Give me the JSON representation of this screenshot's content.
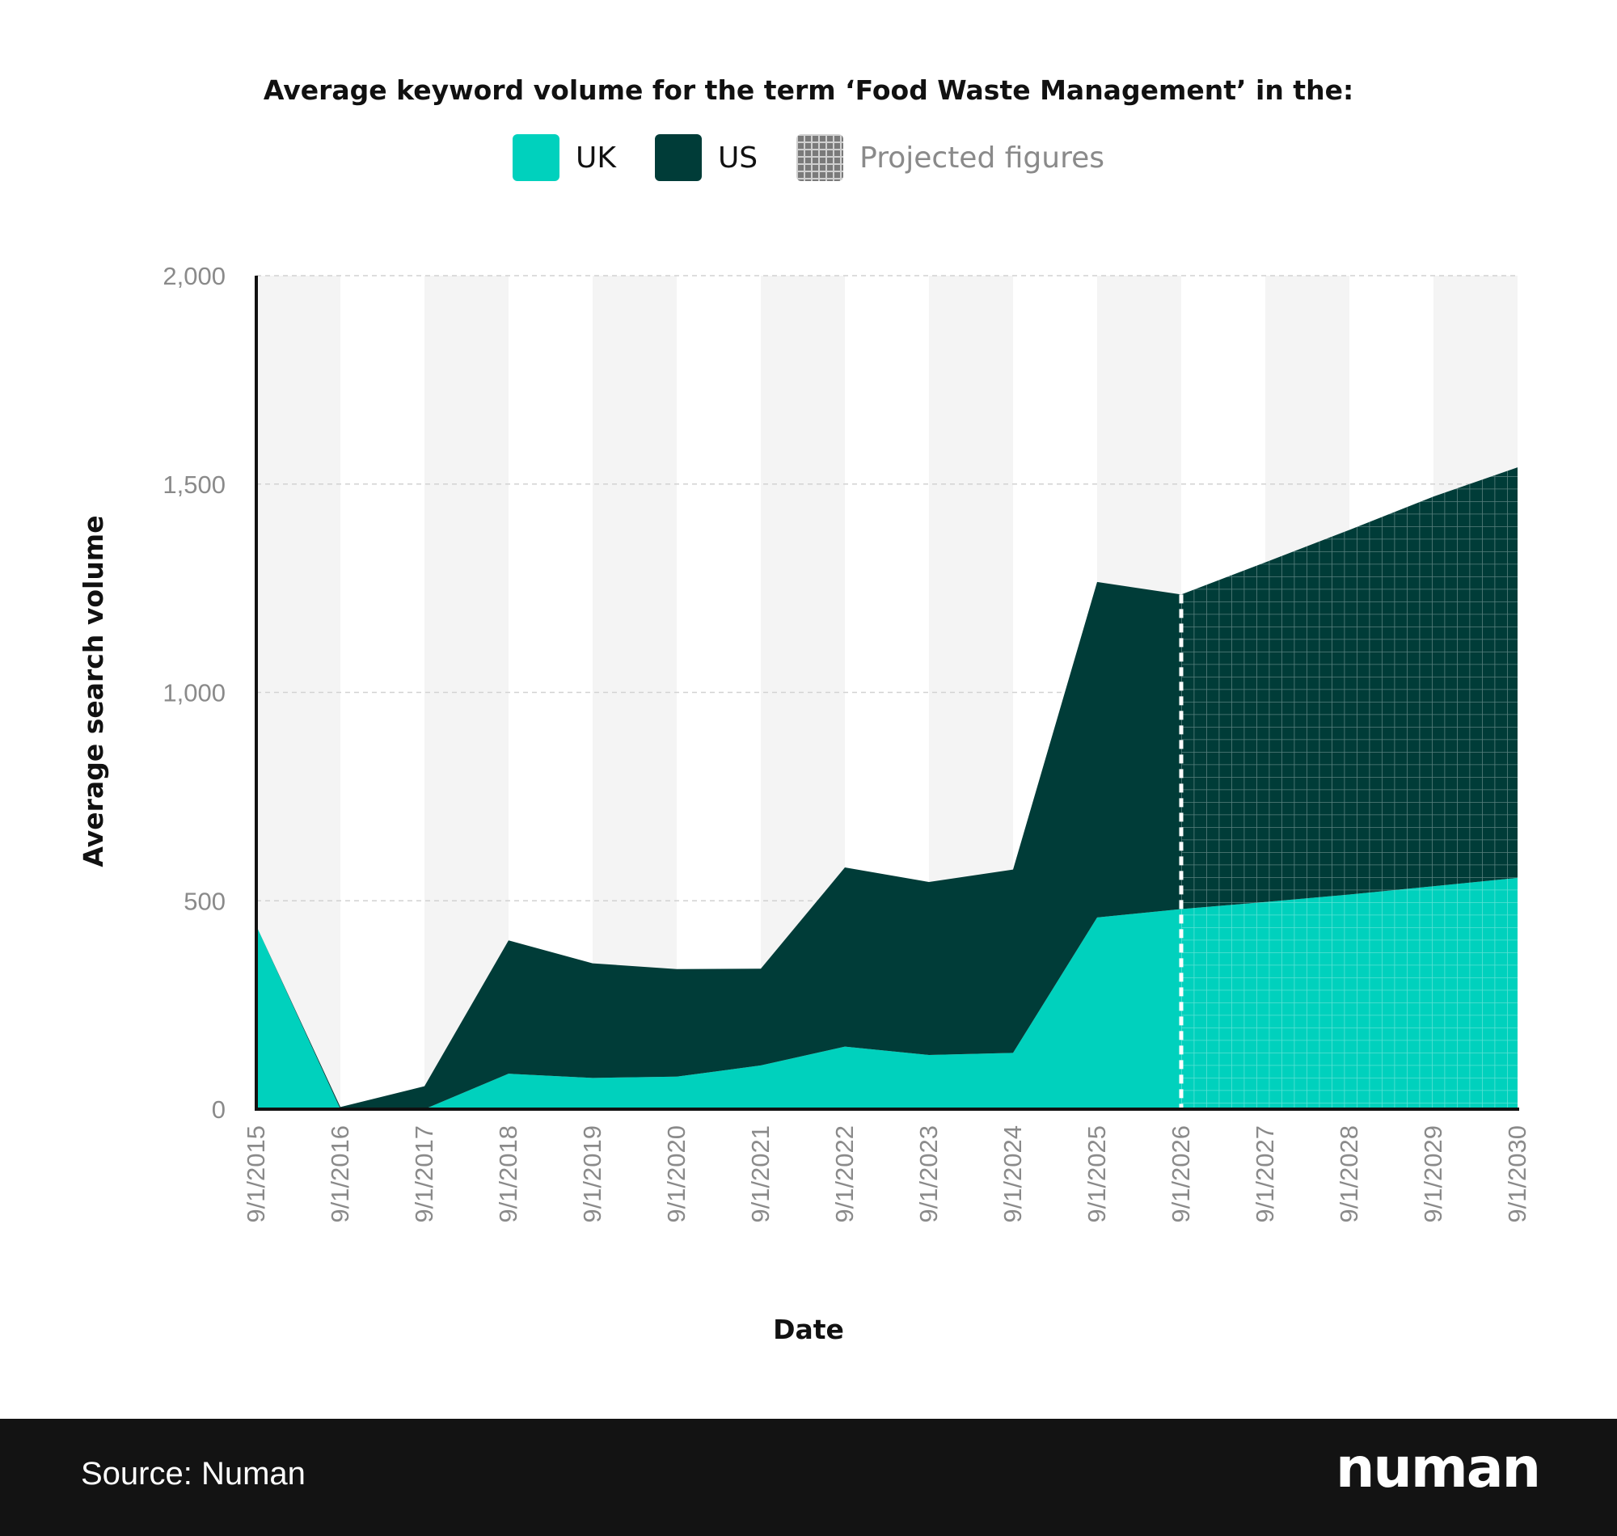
{
  "chart_data": {
    "type": "area",
    "title": "Average keyword volume for the term ‘Food Waste Management’ in the:",
    "xlabel": "Date",
    "ylabel": "Average search volume",
    "x": [
      "9/1/2015",
      "9/1/2016",
      "9/1/2017",
      "9/1/2018",
      "9/1/2019",
      "9/1/2020",
      "9/1/2021",
      "9/1/2022",
      "9/1/2023",
      "9/1/2024",
      "9/1/2025",
      "9/1/2026",
      "9/1/2027",
      "9/1/2028",
      "9/1/2029",
      "9/1/2030"
    ],
    "series": [
      {
        "name": "UK",
        "color": "#00d1bd",
        "values": [
          440,
          0,
          0,
          85,
          75,
          78,
          105,
          150,
          130,
          135,
          460,
          480,
          497,
          515,
          535,
          555
        ]
      },
      {
        "name": "US",
        "color": "#003c38",
        "values": [
          0,
          5,
          55,
          320,
          275,
          258,
          232,
          430,
          415,
          440,
          805,
          755,
          815,
          875,
          935,
          985
        ]
      }
    ],
    "stacked": true,
    "projected_from": "9/1/2026",
    "projected_label": "Projected figures",
    "ylim": [
      0,
      2000
    ],
    "yticks": [
      0,
      500,
      1000,
      1500,
      2000
    ],
    "ytick_labels": [
      "0",
      "500",
      "1,000",
      "1,500",
      "2,000"
    ],
    "grid": true,
    "legend_position": "top-center"
  },
  "footer": {
    "source": "Source: Numan",
    "brand": "numan"
  }
}
